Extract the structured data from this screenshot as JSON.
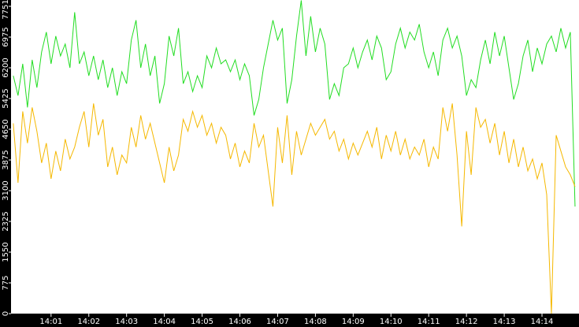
{
  "chart_data": {
    "type": "line",
    "x": [
      0,
      0.125,
      0.25,
      0.375,
      0.5,
      0.625,
      0.75,
      0.875,
      1,
      1.125,
      1.25,
      1.375,
      1.5,
      1.625,
      1.75,
      1.875,
      2,
      2.125,
      2.25,
      2.375,
      2.5,
      2.625,
      2.75,
      2.875,
      3,
      3.125,
      3.25,
      3.375,
      3.5,
      3.625,
      3.75,
      3.875,
      4,
      4.125,
      4.25,
      4.375,
      4.5,
      4.625,
      4.75,
      4.875,
      5,
      5.125,
      5.25,
      5.375,
      5.5,
      5.625,
      5.75,
      5.875,
      6,
      6.125,
      6.25,
      6.375,
      6.5,
      6.625,
      6.75,
      6.875,
      7,
      7.125,
      7.25,
      7.375,
      7.5,
      7.625,
      7.75,
      7.875,
      8,
      8.125,
      8.25,
      8.375,
      8.5,
      8.625,
      8.75,
      8.875,
      9,
      9.125,
      9.25,
      9.375,
      9.5,
      9.625,
      9.75,
      9.875,
      10,
      10.125,
      10.25,
      10.375,
      10.5,
      10.625,
      10.75,
      10.875,
      11,
      11.125,
      11.25,
      11.375,
      11.5,
      11.625,
      11.75,
      11.875,
      12,
      12.125,
      12.25,
      12.375,
      12.5,
      12.625,
      12.75,
      12.875,
      13,
      13.125,
      13.25,
      13.375,
      13.5,
      13.625,
      13.75,
      13.875,
      14,
      14.125,
      14.25,
      14.375,
      14.5,
      14.625,
      14.75,
      14.875
    ],
    "series": [
      {
        "color": "#22dd22",
        "values": [
          6000,
          5500,
          6300,
          5200,
          6400,
          5700,
          6600,
          7100,
          6300,
          7000,
          6500,
          6800,
          6200,
          7600,
          6300,
          6600,
          6000,
          6500,
          5900,
          6400,
          5700,
          6200,
          5500,
          6100,
          5800,
          6900,
          7400,
          6200,
          6800,
          6000,
          6500,
          5300,
          5800,
          7000,
          6500,
          7200,
          5800,
          6100,
          5600,
          6000,
          5700,
          6500,
          6200,
          6700,
          6300,
          6400,
          6100,
          6400,
          5900,
          6300,
          6000,
          5000,
          5400,
          6200,
          6800,
          7400,
          6900,
          7200,
          5300,
          5900,
          7000,
          7900,
          6500,
          7500,
          6600,
          7200,
          6800,
          5400,
          5800,
          5500,
          6200,
          6300,
          6700,
          6200,
          6600,
          6900,
          6400,
          7000,
          6700,
          5900,
          6100,
          6800,
          7200,
          6700,
          7100,
          6900,
          7300,
          6600,
          6200,
          6600,
          6000,
          6900,
          7200,
          6700,
          7000,
          6500,
          5500,
          5900,
          5700,
          6400,
          6900,
          6300,
          7100,
          6500,
          7000,
          6200,
          5400,
          5800,
          6500,
          6900,
          6100,
          6700,
          6300,
          6800,
          7000,
          6600,
          7200,
          6700,
          7100,
          2700
        ]
      },
      {
        "color": "#f5b800",
        "values": [
          4800,
          3300,
          5100,
          4300,
          5200,
          4600,
          3800,
          4300,
          3400,
          4100,
          3600,
          4400,
          3900,
          4200,
          4700,
          5100,
          4200,
          5300,
          4500,
          4900,
          3700,
          4200,
          3500,
          4000,
          3800,
          4700,
          4200,
          5000,
          4400,
          4800,
          4300,
          3800,
          3300,
          4200,
          3600,
          4000,
          4900,
          4600,
          5100,
          4700,
          5000,
          4500,
          4800,
          4300,
          4700,
          4500,
          3900,
          4300,
          3700,
          4100,
          3800,
          4800,
          4200,
          4500,
          3600,
          2700,
          4700,
          3800,
          5000,
          3500,
          4600,
          4000,
          4400,
          4800,
          4500,
          4700,
          4900,
          4400,
          4600,
          4100,
          4400,
          3900,
          4300,
          4000,
          4300,
          4600,
          4200,
          4700,
          3900,
          4500,
          4100,
          4600,
          4000,
          4400,
          3900,
          4200,
          4000,
          4400,
          3700,
          4200,
          3900,
          5200,
          4600,
          5300,
          4000,
          2200,
          4600,
          3500,
          5200,
          4700,
          4900,
          4300,
          4800,
          4000,
          4600,
          3800,
          4400,
          3700,
          4200,
          3600,
          3900,
          3400,
          3800,
          3000,
          0,
          4500,
          4100,
          3700,
          3500,
          3200
        ]
      }
    ],
    "xlim": [
      -0.06,
      14.98
    ],
    "xticks": [
      {
        "value": 1,
        "label": "14:01"
      },
      {
        "value": 2,
        "label": "14:02"
      },
      {
        "value": 3,
        "label": "14:03"
      },
      {
        "value": 4,
        "label": "14:04"
      },
      {
        "value": 5,
        "label": "14:05"
      },
      {
        "value": 6,
        "label": "14:06"
      },
      {
        "value": 7,
        "label": "14:07"
      },
      {
        "value": 8,
        "label": "14:08"
      },
      {
        "value": 9,
        "label": "14:09"
      },
      {
        "value": 10,
        "label": "14:10"
      },
      {
        "value": 11,
        "label": "14:11"
      },
      {
        "value": 12,
        "label": "14:12"
      },
      {
        "value": 13,
        "label": "14:13"
      },
      {
        "value": 14,
        "label": "14:14"
      }
    ],
    "ylim": [
      0,
      7910
    ],
    "yticks": [
      0,
      775,
      1550,
      2325,
      3100,
      3875,
      4650,
      5425,
      6200,
      6975,
      7751
    ]
  }
}
